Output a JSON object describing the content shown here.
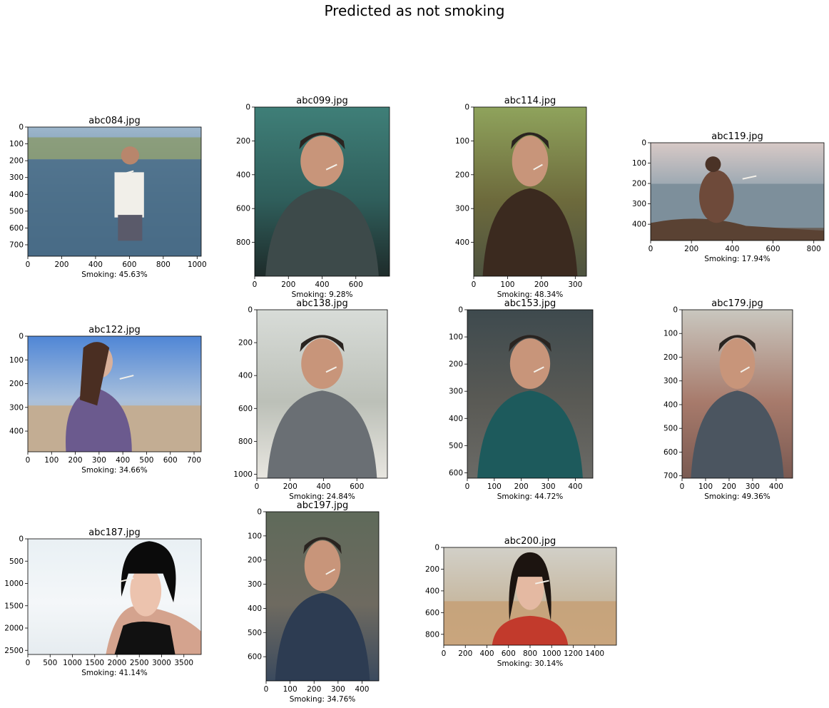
{
  "chart_data": {
    "type": "image-grid",
    "title": "Predicted as not smoking",
    "panels": [
      {
        "title": "abc084.jpg",
        "caption": "Smoking: 45.63%",
        "smoking_pct": 45.63,
        "xlim": [
          0,
          1024
        ],
        "ylim": [
          0,
          768
        ],
        "xticks": [
          0,
          200,
          400,
          600,
          800,
          1000
        ],
        "yticks": [
          0,
          100,
          200,
          300,
          400,
          500,
          600,
          700
        ],
        "scene": "beach",
        "colors": {
          "top": "#9db6cc",
          "mid": "#5d7f95",
          "bottom": "#3f5f7a",
          "figure": "#efe9e2"
        }
      },
      {
        "title": "abc099.jpg",
        "caption": "Smoking: 9.28%",
        "smoking_pct": 9.28,
        "xlim": [
          0,
          800
        ],
        "ylim": [
          0,
          1000
        ],
        "xticks": [
          0,
          200,
          400,
          600
        ],
        "yticks": [
          0,
          200,
          400,
          600,
          800
        ],
        "scene": "portrait-jacket",
        "colors": {
          "top": "#3f7f78",
          "mid": "#2f5e5b",
          "bottom": "#1e2b2a",
          "figure": "#3d4a4a"
        }
      },
      {
        "title": "abc114.jpg",
        "caption": "Smoking: 48.34%",
        "smoking_pct": 48.34,
        "xlim": [
          0,
          333
        ],
        "ylim": [
          0,
          500
        ],
        "xticks": [
          0,
          100,
          200,
          300
        ],
        "yticks": [
          0,
          100,
          200,
          300,
          400
        ],
        "scene": "portrait-close",
        "colors": {
          "top": "#8fa35c",
          "mid": "#6d6a3c",
          "bottom": "#4e5340",
          "figure": "#3b2a1f"
        }
      },
      {
        "title": "abc119.jpg",
        "caption": "Smoking: 17.94%",
        "smoking_pct": 17.94,
        "xlim": [
          0,
          850
        ],
        "ylim": [
          0,
          480
        ],
        "xticks": [
          0,
          200,
          400,
          600,
          800
        ],
        "yticks": [
          0,
          100,
          200,
          300,
          400
        ],
        "scene": "sea-sunset",
        "colors": {
          "top": "#d7c9c6",
          "mid": "#8da0ad",
          "bottom": "#5e4a3c",
          "figure": "#6e4a3a"
        }
      },
      {
        "title": "abc122.jpg",
        "caption": "Smoking: 34.66%",
        "smoking_pct": 34.66,
        "xlim": [
          0,
          730
        ],
        "ylim": [
          0,
          487
        ],
        "xticks": [
          0,
          100,
          200,
          300,
          400,
          500,
          600,
          700
        ],
        "yticks": [
          0,
          100,
          200,
          300,
          400
        ],
        "scene": "beach-woman",
        "colors": {
          "top": "#4f86d6",
          "mid": "#a9c0dc",
          "bottom": "#c9b49a",
          "figure": "#6b5a8e"
        }
      },
      {
        "title": "abc138.jpg",
        "caption": "Smoking: 24.84%",
        "smoking_pct": 24.84,
        "xlim": [
          0,
          783
        ],
        "ylim": [
          0,
          1024
        ],
        "xticks": [
          0,
          200,
          400,
          600
        ],
        "yticks": [
          0,
          200,
          400,
          600,
          800,
          1000
        ],
        "scene": "street",
        "colors": {
          "top": "#d8dcd8",
          "mid": "#bcc0b8",
          "bottom": "#e8e6e0",
          "figure": "#6a6f74"
        }
      },
      {
        "title": "abc153.jpg",
        "caption": "Smoking: 44.72%",
        "smoking_pct": 44.72,
        "xlim": [
          0,
          465
        ],
        "ylim": [
          0,
          620
        ],
        "xticks": [
          0,
          100,
          200,
          300,
          400
        ],
        "yticks": [
          0,
          100,
          200,
          300,
          400,
          500,
          600
        ],
        "scene": "woman-dress",
        "colors": {
          "top": "#3e4a4e",
          "mid": "#5a5a55",
          "bottom": "#6a6a66",
          "figure": "#1d5a5c"
        }
      },
      {
        "title": "abc179.jpg",
        "caption": "Smoking: 49.36%",
        "smoking_pct": 49.36,
        "xlim": [
          0,
          470
        ],
        "ylim": [
          0,
          710
        ],
        "xticks": [
          0,
          100,
          200,
          300,
          400
        ],
        "yticks": [
          0,
          100,
          200,
          300,
          400,
          500,
          600,
          700
        ],
        "scene": "man-suit",
        "colors": {
          "top": "#c9c7bf",
          "mid": "#a77a6b",
          "bottom": "#7a5a52",
          "figure": "#4b5560"
        }
      },
      {
        "title": "abc187.jpg",
        "caption": "Smoking: 41.14%",
        "smoking_pct": 41.14,
        "xlim": [
          0,
          3888
        ],
        "ylim": [
          0,
          2592
        ],
        "xticks": [
          0,
          500,
          1000,
          1500,
          2000,
          2500,
          3000,
          3500
        ],
        "yticks": [
          0,
          500,
          1000,
          1500,
          2000,
          2500
        ],
        "scene": "studio-woman",
        "colors": {
          "top": "#e9f0f4",
          "mid": "#f4f7f9",
          "bottom": "#e6ecf0",
          "figure": "#111111"
        }
      },
      {
        "title": "abc197.jpg",
        "caption": "Smoking: 34.76%",
        "smoking_pct": 34.76,
        "xlim": [
          0,
          470
        ],
        "ylim": [
          0,
          700
        ],
        "xticks": [
          0,
          100,
          200,
          300,
          400
        ],
        "yticks": [
          0,
          100,
          200,
          300,
          400,
          500,
          600
        ],
        "scene": "workshop",
        "colors": {
          "top": "#5f6a5a",
          "mid": "#6e6a60",
          "bottom": "#3b4a5e",
          "figure": "#2d3c52"
        }
      },
      {
        "title": "abc200.jpg",
        "caption": "Smoking: 30.14%",
        "smoking_pct": 30.14,
        "xlim": [
          0,
          1600
        ],
        "ylim": [
          0,
          900
        ],
        "xticks": [
          0,
          200,
          400,
          600,
          800,
          1000,
          1200,
          1400
        ],
        "yticks": [
          0,
          200,
          400,
          600,
          800
        ],
        "scene": "kitchen",
        "colors": {
          "top": "#d2d0c8",
          "mid": "#c7b9a2",
          "bottom": "#d4c0a3",
          "figure": "#c23a2c"
        }
      }
    ]
  }
}
